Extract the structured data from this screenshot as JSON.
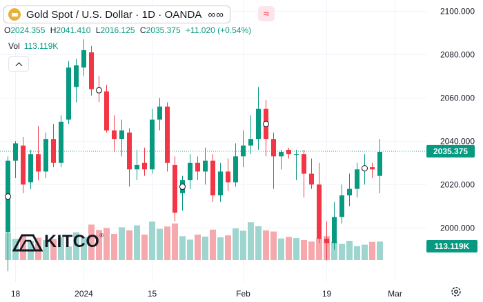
{
  "header": {
    "title": "Gold Spot / U.S. Dollar · 1D · OANDA",
    "dots": "∞∞",
    "compare_glyph": "≈",
    "symbol_icon": "gold-bar-icon"
  },
  "ohlc": {
    "open_label": "O",
    "open": "2024.355",
    "high_label": "H",
    "high": "2041.410",
    "low_label": "L",
    "low": "2016.125",
    "close_label": "C",
    "close": "2035.375",
    "change": "+11.020 (+0.54%)"
  },
  "volume": {
    "label": "Vol",
    "value": "113.119K"
  },
  "logo": {
    "text": "KITCO",
    "reg": "®"
  },
  "colors": {
    "up": "#089981",
    "down": "#f23645",
    "vol_up": "#9fd5cf",
    "vol_down": "#f5a9ad",
    "grid": "#f0f3fa",
    "last": "#089981"
  },
  "chart_data": {
    "type": "candlestick",
    "y_ticks": [
      "2100.000",
      "2080.000",
      "2060.000",
      "2040.000",
      "2020.000",
      "2000.000"
    ],
    "ylim": [
      1975,
      2102
    ],
    "x_ticks": [
      {
        "label": "18",
        "index": 1
      },
      {
        "label": "2024",
        "index": 10
      },
      {
        "label": "15",
        "index": 19
      },
      {
        "label": "Feb",
        "index": 31
      },
      {
        "label": "19",
        "index": 42
      },
      {
        "label": "Mar",
        "index": 51
      }
    ],
    "last_price_label": "2035.375",
    "volume_label": "113.119K",
    "candles": [
      {
        "o": 1998,
        "h": 2033,
        "l": 1980,
        "c": 2031,
        "v": 0.7,
        "marker": true
      },
      {
        "o": 2031,
        "h": 2040,
        "l": 2023,
        "c": 2039,
        "v": 0.55
      },
      {
        "o": 2038,
        "h": 2042,
        "l": 2016,
        "c": 2020,
        "v": 0.62
      },
      {
        "o": 2021,
        "h": 2036,
        "l": 2018,
        "c": 2034,
        "v": 0.5
      },
      {
        "o": 2034,
        "h": 2047,
        "l": 2022,
        "c": 2026,
        "v": 0.58
      },
      {
        "o": 2026,
        "h": 2044,
        "l": 2023,
        "c": 2041,
        "v": 0.52
      },
      {
        "o": 2041,
        "h": 2048,
        "l": 2028,
        "c": 2030,
        "v": 0.55
      },
      {
        "o": 2030,
        "h": 2052,
        "l": 2028,
        "c": 2049,
        "v": 0.6
      },
      {
        "o": 2050,
        "h": 2077,
        "l": 2048,
        "c": 2074,
        "v": 0.35
      },
      {
        "o": 2065,
        "h": 2078,
        "l": 2058,
        "c": 2075,
        "v": 0.72
      },
      {
        "o": 2074,
        "h": 2087,
        "l": 2070,
        "c": 2082,
        "v": 0.6
      },
      {
        "o": 2081,
        "h": 2084,
        "l": 2061,
        "c": 2064,
        "v": 0.92
      },
      {
        "o": 2064,
        "h": 2070,
        "l": 2058,
        "c": 2063,
        "v": 0.78,
        "marker": true
      },
      {
        "o": 2063,
        "h": 2066,
        "l": 2044,
        "c": 2045,
        "v": 0.83
      },
      {
        "o": 2045,
        "h": 2052,
        "l": 2035,
        "c": 2041,
        "v": 0.68
      },
      {
        "o": 2041,
        "h": 2050,
        "l": 2033,
        "c": 2045,
        "v": 0.85
      },
      {
        "o": 2044,
        "h": 2046,
        "l": 2019,
        "c": 2027,
        "v": 0.77
      },
      {
        "o": 2027,
        "h": 2036,
        "l": 2022,
        "c": 2029,
        "v": 0.9
      },
      {
        "o": 2030,
        "h": 2037,
        "l": 2024,
        "c": 2027,
        "v": 0.66
      },
      {
        "o": 2027,
        "h": 2055,
        "l": 2025,
        "c": 2050,
        "v": 1.0
      },
      {
        "o": 2050,
        "h": 2060,
        "l": 2045,
        "c": 2056,
        "v": 0.81
      },
      {
        "o": 2056,
        "h": 2058,
        "l": 2026,
        "c": 2030,
        "v": 0.87
      },
      {
        "o": 2029,
        "h": 2033,
        "l": 2003,
        "c": 2007,
        "v": 0.95
      },
      {
        "o": 2016,
        "h": 2024,
        "l": 2008,
        "c": 2022,
        "v": 0.62,
        "marker": true
      },
      {
        "o": 2022,
        "h": 2034,
        "l": 2018,
        "c": 2030,
        "v": 0.53
      },
      {
        "o": 2030,
        "h": 2033,
        "l": 2022,
        "c": 2026,
        "v": 0.66
      },
      {
        "o": 2026,
        "h": 2037,
        "l": 2020,
        "c": 2031,
        "v": 0.61
      },
      {
        "o": 2031,
        "h": 2034,
        "l": 2012,
        "c": 2015,
        "v": 0.79
      },
      {
        "o": 2015,
        "h": 2030,
        "l": 2012,
        "c": 2026,
        "v": 0.59
      },
      {
        "o": 2026,
        "h": 2032,
        "l": 2017,
        "c": 2021,
        "v": 0.64
      },
      {
        "o": 2021,
        "h": 2039,
        "l": 2019,
        "c": 2033,
        "v": 0.82
      },
      {
        "o": 2033,
        "h": 2045,
        "l": 2028,
        "c": 2038,
        "v": 0.76
      },
      {
        "o": 2038,
        "h": 2052,
        "l": 2034,
        "c": 2041,
        "v": 0.98
      },
      {
        "o": 2041,
        "h": 2065,
        "l": 2036,
        "c": 2055,
        "v": 0.88
      },
      {
        "o": 2055,
        "h": 2059,
        "l": 2033,
        "c": 2041,
        "v": 0.77,
        "marker": true
      },
      {
        "o": 2041,
        "h": 2044,
        "l": 2018,
        "c": 2033,
        "v": 0.74
      },
      {
        "o": 2033,
        "h": 2036,
        "l": 2027,
        "c": 2035,
        "v": 0.56
      },
      {
        "o": 2036,
        "h": 2037,
        "l": 2032,
        "c": 2034,
        "v": 0.6
      },
      {
        "o": 2034,
        "h": 2036,
        "l": 2022,
        "c": 2034,
        "v": 0.57
      },
      {
        "o": 2034,
        "h": 2036,
        "l": 2014,
        "c": 2025,
        "v": 0.52
      },
      {
        "o": 2025,
        "h": 2032,
        "l": 2018,
        "c": 2020,
        "v": 0.48
      },
      {
        "o": 2020,
        "h": 2030,
        "l": 1993,
        "c": 1995,
        "v": 0.56
      },
      {
        "o": 1995,
        "h": 2003,
        "l": 1985,
        "c": 1993,
        "v": 0.62
      },
      {
        "o": 1993,
        "h": 2012,
        "l": 1990,
        "c": 2005,
        "v": 0.48
      },
      {
        "o": 2005,
        "h": 2020,
        "l": 2002,
        "c": 2015,
        "v": 0.42
      },
      {
        "o": 2015,
        "h": 2025,
        "l": 2010,
        "c": 2018,
        "v": 0.5
      },
      {
        "o": 2018,
        "h": 2030,
        "l": 2014,
        "c": 2027,
        "v": 0.36
      },
      {
        "o": 2027,
        "h": 2034,
        "l": 2020,
        "c": 2028,
        "v": 0.4,
        "marker": true
      },
      {
        "o": 2028,
        "h": 2030,
        "l": 2023,
        "c": 2027,
        "v": 0.47
      },
      {
        "o": 2024,
        "h": 2041,
        "l": 2016,
        "c": 2035,
        "v": 0.48
      }
    ]
  }
}
